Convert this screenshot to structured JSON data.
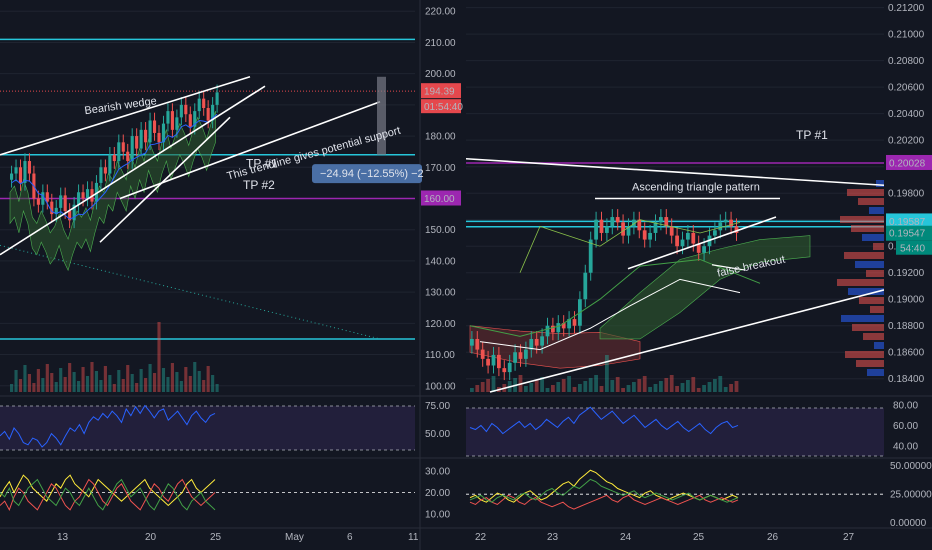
{
  "colors": {
    "background": "#131722",
    "grid": "#1f2430",
    "cyan": "#26c6da",
    "purple": "#9c27b0",
    "red_badge": "#e5484d",
    "white_line": "#ffffff",
    "candle_up": "#26a69a",
    "candle_down": "#ef5350",
    "rsi_line": "#2962ff",
    "rsi_band": "#2a2346",
    "cloud_green": "#2e5a2e",
    "cloud_red": "#5a2a2e",
    "tooltip": "#4a6fa5"
  },
  "chart_data": [
    {
      "type": "candlestick",
      "name": "left-panel",
      "y_ticks": [
        "220.00",
        "210.00",
        "200.00",
        "190.00",
        "180.00",
        "170.00",
        "160.00",
        "150.00",
        "140.00",
        "130.00",
        "120.00",
        "110.00",
        "100.00"
      ],
      "y_range": [
        98,
        222
      ],
      "x_ticks": [
        "13",
        "20",
        "25",
        "May",
        "6",
        "11"
      ],
      "price_label": "194.39",
      "timer_label": "01:54:40",
      "level_160": "160.00",
      "measure_label": "−24.94 (−12.55%) −2",
      "annotations": {
        "wedge": "Bearish wedge",
        "trendline": "This trendline gives potential support",
        "tp1": "TP #1",
        "tp2": "TP #2"
      },
      "horizontal_levels": [
        {
          "value": 211,
          "color": "cyan"
        },
        {
          "value": 174,
          "color": "cyan"
        },
        {
          "value": 160,
          "color": "purple"
        },
        {
          "value": 115,
          "color": "cyan"
        }
      ],
      "close_series": [
        168,
        170,
        165,
        172,
        168,
        160,
        158,
        162,
        159,
        155,
        157,
        161,
        156,
        153,
        158,
        162,
        160,
        163,
        159,
        165,
        170,
        168,
        174,
        172,
        178,
        175,
        172,
        180,
        176,
        182,
        178,
        185,
        181,
        178,
        184,
        188,
        182,
        186,
        190,
        187,
        183,
        188,
        192,
        189,
        185,
        190,
        194
      ],
      "rsi_ticks": [
        "75.00",
        "50.00"
      ],
      "rsi_values": [
        48,
        52,
        45,
        55,
        50,
        42,
        40,
        46,
        44,
        38,
        42,
        50,
        46,
        40,
        48,
        55,
        52,
        58,
        50,
        60,
        65,
        62,
        68,
        64,
        70,
        66,
        60,
        72,
        66,
        74,
        68,
        75,
        70,
        64,
        70,
        72,
        62,
        66,
        70,
        64,
        58,
        66,
        70,
        64,
        60,
        66,
        68
      ],
      "dmi_ticks": [
        "30.00",
        "20.00",
        "10.00"
      ],
      "dmi_series": [
        {
          "values": [
            18,
            22,
            25,
            20,
            24,
            28,
            26,
            22,
            20,
            18,
            16,
            20,
            24,
            22,
            26,
            28,
            24,
            22,
            20,
            18,
            22,
            26,
            24,
            22,
            20,
            18,
            16,
            18,
            20,
            22,
            24,
            26,
            22,
            20,
            18,
            16,
            14,
            16,
            18,
            20,
            24,
            26,
            22,
            20,
            22,
            24,
            26
          ],
          "color": "#ffeb3b"
        },
        {
          "values": [
            14,
            16,
            12,
            18,
            22,
            20,
            16,
            14,
            12,
            16,
            20,
            24,
            22,
            18,
            14,
            12,
            16,
            18,
            22,
            26,
            24,
            20,
            16,
            14,
            18,
            22,
            24,
            20,
            16,
            14,
            12,
            16,
            20,
            24,
            22,
            18,
            16,
            20,
            24,
            26,
            22,
            18,
            16,
            14,
            16,
            18,
            20
          ],
          "color": "#ef5350"
        },
        {
          "values": [
            20,
            18,
            22,
            16,
            14,
            18,
            22,
            24,
            26,
            22,
            18,
            16,
            14,
            18,
            22,
            20,
            16,
            14,
            18,
            22,
            18,
            14,
            12,
            16,
            20,
            24,
            26,
            22,
            18,
            20,
            22,
            18,
            14,
            12,
            16,
            20,
            24,
            22,
            18,
            14,
            12,
            16,
            18,
            20,
            16,
            14,
            12
          ],
          "color": "#43a047"
        }
      ]
    },
    {
      "type": "candlestick",
      "name": "right-panel",
      "y_ticks": [
        "0.21200",
        "0.21000",
        "0.20800",
        "0.20600",
        "0.20400",
        "0.20200",
        "0.20000",
        "0.19800",
        "0.19600",
        "0.19400",
        "0.19200",
        "0.19000",
        "0.18800",
        "0.18600",
        "0.18400"
      ],
      "y_range": [
        0.183,
        0.2122
      ],
      "x_ticks": [
        "22",
        "23",
        "24",
        "25",
        "26",
        "27"
      ],
      "price_label_purple": "0.20028",
      "price_label_cyan1": "0.19587",
      "price_label_cyan2": "0.19547",
      "timer_label": "54:40",
      "annotations": {
        "tp1": "TP #1",
        "triangle": "Ascending triangle pattern",
        "false_breakout": "false breakout"
      },
      "horizontal_levels": [
        {
          "value": 0.20028,
          "color": "purple"
        },
        {
          "value": 0.19587,
          "color": "cyan"
        },
        {
          "value": 0.19547,
          "color": "cyan"
        }
      ],
      "close_series": [
        0.187,
        0.1862,
        0.1855,
        0.185,
        0.1858,
        0.1848,
        0.1845,
        0.1852,
        0.186,
        0.1855,
        0.1862,
        0.187,
        0.1865,
        0.1872,
        0.188,
        0.1875,
        0.1882,
        0.1878,
        0.1885,
        0.188,
        0.19,
        0.192,
        0.1945,
        0.196,
        0.195,
        0.1955,
        0.1962,
        0.1958,
        0.1948,
        0.1955,
        0.196,
        0.1952,
        0.1945,
        0.195,
        0.1958,
        0.1962,
        0.1955,
        0.1948,
        0.194,
        0.1945,
        0.195,
        0.1942,
        0.1935,
        0.194,
        0.1948,
        0.1952,
        0.1958,
        0.196,
        0.1955,
        0.195
      ],
      "rsi_ticks": [
        "80.00",
        "60.00",
        "40.00"
      ],
      "rsi_values": [
        58,
        56,
        60,
        54,
        62,
        58,
        52,
        56,
        60,
        64,
        58,
        62,
        56,
        60,
        66,
        62,
        58,
        64,
        68,
        62,
        70,
        74,
        78,
        72,
        66,
        70,
        74,
        68,
        62,
        66,
        70,
        64,
        58,
        62,
        66,
        60,
        56,
        60,
        64,
        58,
        54,
        58,
        62,
        56,
        52,
        58,
        62,
        64,
        58,
        60
      ],
      "dmi_ticks": [
        "50.00000",
        "25.00000",
        "0.00000"
      ],
      "dmi_series": [
        {
          "values": [
            22,
            24,
            20,
            18,
            22,
            26,
            24,
            20,
            18,
            22,
            26,
            28,
            24,
            20,
            22,
            26,
            30,
            34,
            36,
            32,
            38,
            42,
            46,
            44,
            40,
            36,
            34,
            30,
            28,
            26,
            24,
            22,
            26,
            28,
            24,
            22,
            20,
            22,
            24,
            26,
            24,
            22,
            20,
            22,
            24,
            22,
            20,
            22,
            24,
            22
          ],
          "color": "#ffeb3b"
        },
        {
          "values": [
            18,
            16,
            20,
            22,
            18,
            16,
            20,
            24,
            22,
            18,
            16,
            20,
            22,
            18,
            16,
            14,
            16,
            18,
            14,
            12,
            14,
            16,
            18,
            20,
            22,
            24,
            20,
            18,
            22,
            24,
            20,
            18,
            16,
            18,
            20,
            22,
            20,
            18,
            16,
            18,
            20,
            22,
            24,
            20,
            18,
            20,
            22,
            20,
            18,
            20
          ],
          "color": "#ef5350"
        },
        {
          "values": [
            20,
            22,
            24,
            20,
            18,
            22,
            24,
            22,
            20,
            24,
            26,
            22,
            20,
            24,
            28,
            30,
            26,
            24,
            28,
            32,
            30,
            34,
            38,
            36,
            32,
            30,
            28,
            26,
            24,
            26,
            28,
            24,
            22,
            24,
            26,
            24,
            22,
            20,
            22,
            24,
            26,
            22,
            20,
            22,
            24,
            22,
            20,
            18,
            20,
            22
          ],
          "color": "#43a047"
        }
      ]
    }
  ]
}
